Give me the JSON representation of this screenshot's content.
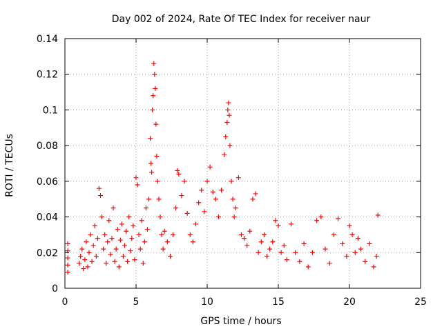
{
  "chart_data": {
    "type": "scatter",
    "title": "Day 002 of 2024, Rate Of TEC Index for receiver naur",
    "xlabel": "GPS time / hours",
    "ylabel": "ROTI / TECUs",
    "xlim": [
      0,
      25
    ],
    "ylim": [
      0,
      0.14
    ],
    "x_ticks": [
      0,
      5,
      10,
      15,
      20,
      25
    ],
    "y_ticks": [
      0,
      0.02,
      0.04,
      0.06,
      0.08,
      0.1,
      0.12,
      0.14
    ],
    "x_tick_labels": [
      "0",
      "5",
      "10",
      "15",
      "20",
      "25"
    ],
    "y_tick_labels": [
      "0",
      "0.02",
      "0.04",
      "0.06",
      "0.08",
      "0.1",
      "0.12",
      "0.14"
    ],
    "grid": true,
    "marker": "plus",
    "color": "#ff0000",
    "series": [
      {
        "points": [
          [
            0.2,
            0.025
          ],
          [
            0.2,
            0.021
          ],
          [
            0.2,
            0.017
          ],
          [
            0.2,
            0.013
          ],
          [
            0.2,
            0.009
          ],
          [
            1.0,
            0.014
          ],
          [
            1.1,
            0.018
          ],
          [
            1.2,
            0.022
          ],
          [
            1.3,
            0.011
          ],
          [
            1.4,
            0.016
          ],
          [
            1.5,
            0.026
          ],
          [
            1.6,
            0.012
          ],
          [
            1.7,
            0.02
          ],
          [
            1.8,
            0.03
          ],
          [
            1.9,
            0.015
          ],
          [
            2.0,
            0.024
          ],
          [
            2.1,
            0.035
          ],
          [
            2.2,
            0.018
          ],
          [
            2.3,
            0.028
          ],
          [
            2.4,
            0.056
          ],
          [
            2.5,
            0.052
          ],
          [
            2.6,
            0.04
          ],
          [
            2.7,
            0.022
          ],
          [
            2.8,
            0.03
          ],
          [
            2.9,
            0.014
          ],
          [
            3.0,
            0.026
          ],
          [
            3.1,
            0.038
          ],
          [
            3.2,
            0.019
          ],
          [
            3.3,
            0.028
          ],
          [
            3.4,
            0.045
          ],
          [
            3.5,
            0.015
          ],
          [
            3.6,
            0.022
          ],
          [
            3.7,
            0.033
          ],
          [
            3.8,
            0.012
          ],
          [
            3.9,
            0.027
          ],
          [
            4.0,
            0.036
          ],
          [
            4.1,
            0.018
          ],
          [
            4.2,
            0.024
          ],
          [
            4.3,
            0.032
          ],
          [
            4.4,
            0.015
          ],
          [
            4.5,
            0.04
          ],
          [
            4.6,
            0.021
          ],
          [
            4.7,
            0.028
          ],
          [
            4.8,
            0.035
          ],
          [
            4.9,
            0.016
          ],
          [
            5.0,
            0.062
          ],
          [
            5.1,
            0.058
          ],
          [
            5.2,
            0.03
          ],
          [
            5.3,
            0.022
          ],
          [
            5.4,
            0.038
          ],
          [
            5.5,
            0.014
          ],
          [
            5.6,
            0.026
          ],
          [
            5.7,
            0.045
          ],
          [
            5.8,
            0.033
          ],
          [
            5.9,
            0.05
          ],
          [
            6.0,
            0.084
          ],
          [
            6.05,
            0.07
          ],
          [
            6.1,
            0.065
          ],
          [
            6.15,
            0.1
          ],
          [
            6.2,
            0.108
          ],
          [
            6.25,
            0.126
          ],
          [
            6.3,
            0.12
          ],
          [
            6.35,
            0.112
          ],
          [
            6.4,
            0.092
          ],
          [
            6.45,
            0.074
          ],
          [
            6.5,
            0.06
          ],
          [
            6.6,
            0.05
          ],
          [
            6.7,
            0.04
          ],
          [
            6.8,
            0.03
          ],
          [
            6.9,
            0.022
          ],
          [
            7.0,
            0.032
          ],
          [
            7.2,
            0.026
          ],
          [
            7.4,
            0.018
          ],
          [
            7.6,
            0.03
          ],
          [
            7.8,
            0.045
          ],
          [
            7.9,
            0.066
          ],
          [
            8.0,
            0.064
          ],
          [
            8.2,
            0.052
          ],
          [
            8.4,
            0.06
          ],
          [
            8.6,
            0.042
          ],
          [
            8.8,
            0.03
          ],
          [
            9.0,
            0.026
          ],
          [
            9.2,
            0.036
          ],
          [
            9.4,
            0.048
          ],
          [
            9.6,
            0.055
          ],
          [
            9.8,
            0.043
          ],
          [
            10.0,
            0.06
          ],
          [
            10.2,
            0.068
          ],
          [
            10.4,
            0.054
          ],
          [
            10.6,
            0.05
          ],
          [
            10.8,
            0.04
          ],
          [
            11.0,
            0.055
          ],
          [
            11.2,
            0.075
          ],
          [
            11.3,
            0.085
          ],
          [
            11.4,
            0.093
          ],
          [
            11.45,
            0.1
          ],
          [
            11.5,
            0.104
          ],
          [
            11.55,
            0.097
          ],
          [
            11.6,
            0.08
          ],
          [
            11.7,
            0.06
          ],
          [
            11.8,
            0.05
          ],
          [
            11.9,
            0.04
          ],
          [
            12.0,
            0.045
          ],
          [
            12.2,
            0.062
          ],
          [
            12.4,
            0.03
          ],
          [
            12.6,
            0.028
          ],
          [
            12.8,
            0.024
          ],
          [
            13.0,
            0.032
          ],
          [
            13.2,
            0.05
          ],
          [
            13.4,
            0.053
          ],
          [
            13.6,
            0.02
          ],
          [
            13.8,
            0.026
          ],
          [
            14.0,
            0.03
          ],
          [
            14.2,
            0.018
          ],
          [
            14.4,
            0.022
          ],
          [
            14.6,
            0.026
          ],
          [
            14.8,
            0.038
          ],
          [
            15.0,
            0.035
          ],
          [
            15.2,
            0.02
          ],
          [
            15.4,
            0.024
          ],
          [
            15.6,
            0.016
          ],
          [
            15.9,
            0.036
          ],
          [
            16.2,
            0.02
          ],
          [
            16.5,
            0.015
          ],
          [
            16.8,
            0.025
          ],
          [
            17.1,
            0.012
          ],
          [
            17.4,
            0.02
          ],
          [
            17.7,
            0.038
          ],
          [
            18.0,
            0.04
          ],
          [
            18.3,
            0.022
          ],
          [
            18.6,
            0.014
          ],
          [
            18.9,
            0.03
          ],
          [
            19.2,
            0.039
          ],
          [
            19.5,
            0.025
          ],
          [
            19.8,
            0.018
          ],
          [
            20.0,
            0.035
          ],
          [
            20.2,
            0.03
          ],
          [
            20.4,
            0.02
          ],
          [
            20.6,
            0.028
          ],
          [
            20.8,
            0.022
          ],
          [
            21.1,
            0.015
          ],
          [
            21.4,
            0.025
          ],
          [
            21.7,
            0.012
          ],
          [
            21.9,
            0.018
          ],
          [
            22.0,
            0.041
          ]
        ]
      }
    ]
  }
}
